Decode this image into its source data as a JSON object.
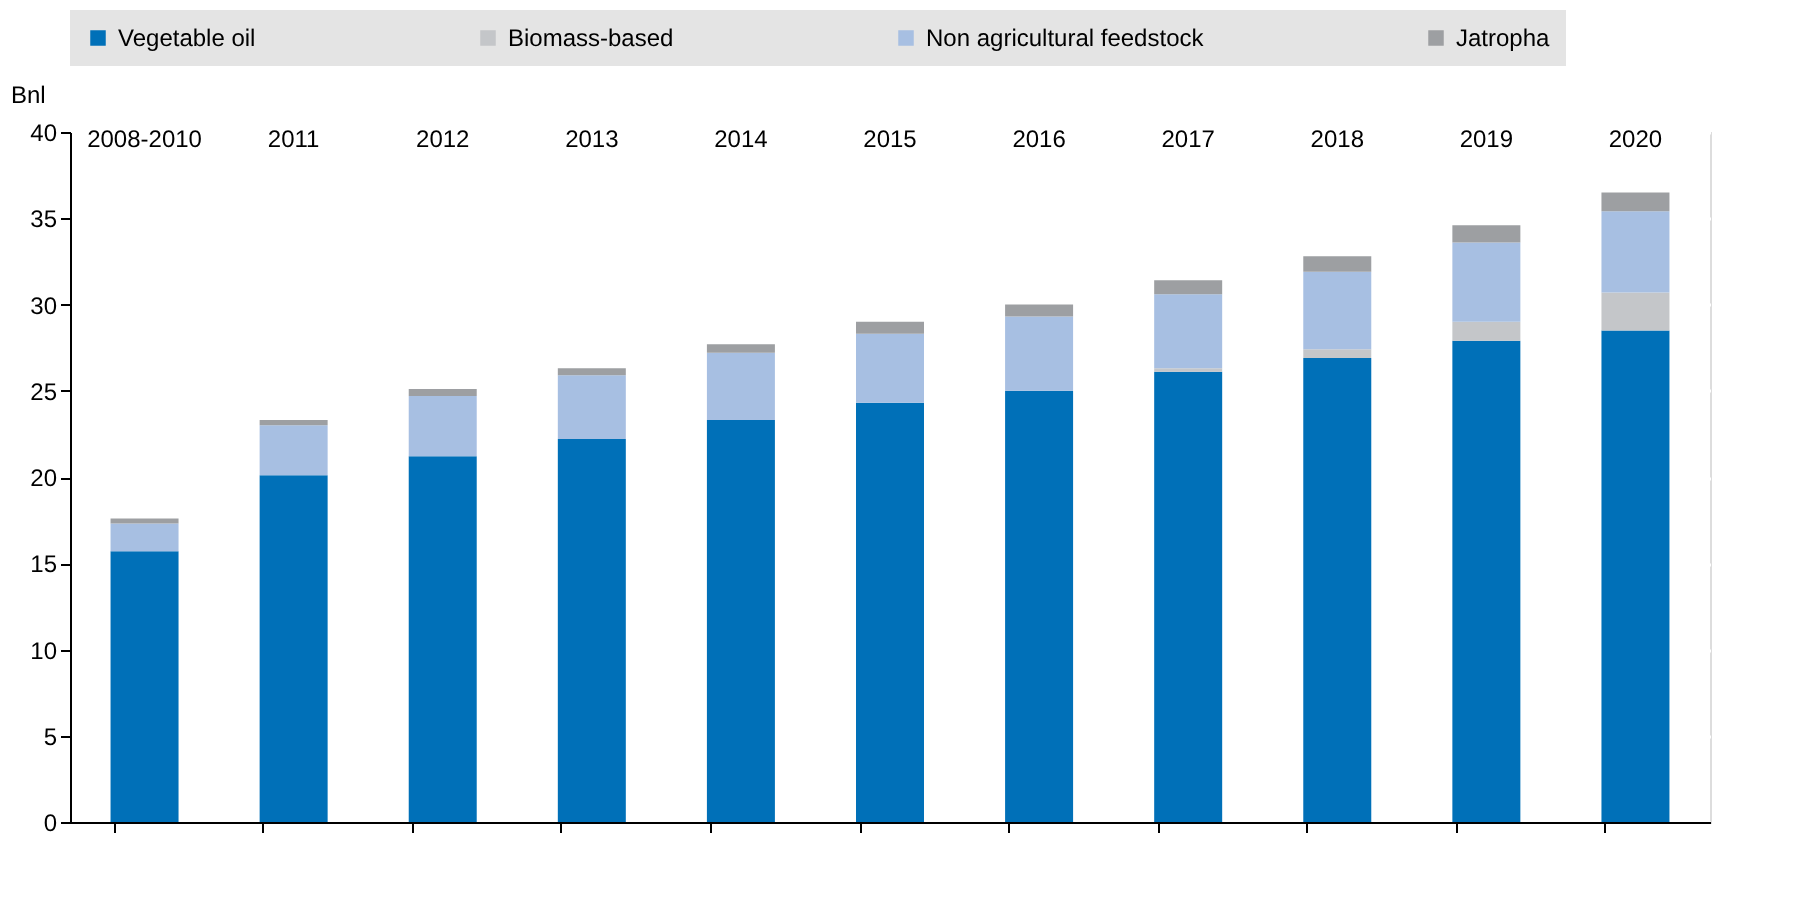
{
  "chart_data": {
    "type": "bar",
    "stacked": true,
    "ylabel": "Bnl",
    "categories": [
      "2008-2010",
      "2011",
      "2012",
      "2013",
      "2014",
      "2015",
      "2016",
      "2017",
      "2018",
      "2019",
      "2020"
    ],
    "series": [
      {
        "name": "Vegetable oil",
        "color": "#0070b8",
        "values": [
          15.7,
          20.1,
          21.2,
          22.2,
          23.3,
          24.3,
          25.0,
          26.1,
          26.9,
          27.9,
          28.5
        ]
      },
      {
        "name": "Biomass-based",
        "color": "#c4c6c9",
        "values": [
          0,
          0,
          0,
          0,
          0,
          0,
          0,
          0.2,
          0.5,
          1.1,
          2.2
        ]
      },
      {
        "name": "Non agricultural feedstock",
        "color": "#a7bfe2",
        "values": [
          1.6,
          2.9,
          3.5,
          3.7,
          3.9,
          4.0,
          4.3,
          4.3,
          4.5,
          4.6,
          4.7
        ]
      },
      {
        "name": "Jatropha",
        "color": "#9d9fa2",
        "values": [
          0.3,
          0.3,
          0.4,
          0.4,
          0.5,
          0.7,
          0.7,
          0.8,
          0.9,
          1.0,
          1.1
        ]
      }
    ],
    "ylim": [
      0,
      40
    ],
    "yticks": [
      0,
      5,
      10,
      15,
      20,
      25,
      30,
      35,
      40
    ],
    "grid": true,
    "legend": "top"
  }
}
